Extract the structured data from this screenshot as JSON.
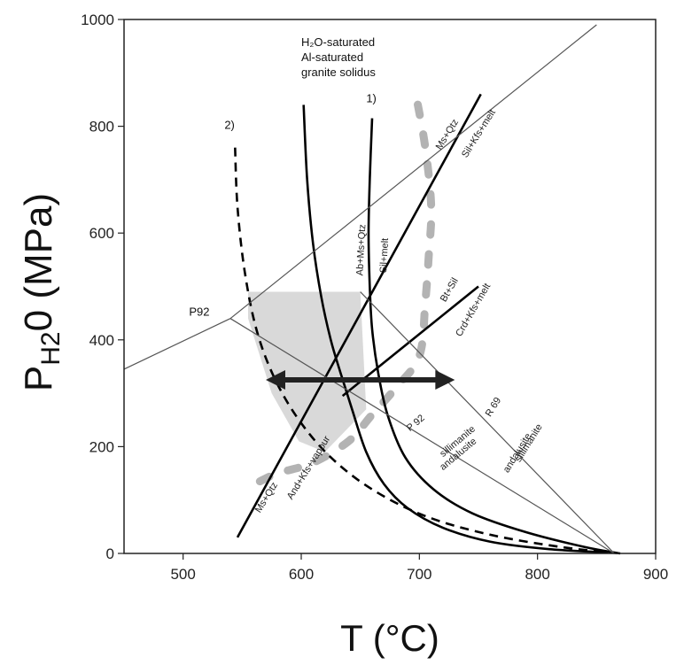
{
  "chart_data": {
    "type": "line",
    "xlabel": "T (°C)",
    "ylabel_parts": [
      "P",
      "H",
      "2",
      "0",
      " (MPa)"
    ],
    "xlim": [
      450,
      900
    ],
    "ylim": [
      0,
      1000
    ],
    "x_ticks": [
      "500",
      "600",
      "700",
      "800",
      "900"
    ],
    "y_ticks": [
      "0",
      "200",
      "400",
      "600",
      "800",
      "1000"
    ],
    "grid": false,
    "series": [
      {
        "id": "solidus",
        "style": "solid-thick",
        "points": [
          [
            602,
            840
          ],
          [
            605,
            700
          ],
          [
            610,
            580
          ],
          [
            617,
            480
          ],
          [
            625,
            400
          ],
          [
            633,
            340
          ],
          [
            643,
            270
          ],
          [
            655,
            190
          ],
          [
            670,
            130
          ],
          [
            690,
            85
          ],
          [
            720,
            48
          ],
          [
            760,
            22
          ],
          [
            810,
            8
          ],
          [
            860,
            2
          ]
        ]
      },
      {
        "id": "curve1",
        "style": "solid-thick",
        "points": [
          [
            660,
            815
          ],
          [
            658,
            700
          ],
          [
            657,
            600
          ],
          [
            658,
            500
          ],
          [
            660,
            420
          ],
          [
            665,
            340
          ],
          [
            673,
            260
          ],
          [
            688,
            180
          ],
          [
            712,
            120
          ],
          [
            745,
            75
          ],
          [
            790,
            40
          ],
          [
            840,
            12
          ],
          [
            870,
            0
          ]
        ]
      },
      {
        "id": "curve2",
        "style": "dashed-thick",
        "points": [
          [
            544,
            760
          ],
          [
            546,
            650
          ],
          [
            552,
            530
          ],
          [
            562,
            420
          ],
          [
            577,
            330
          ],
          [
            598,
            250
          ],
          [
            625,
            180
          ],
          [
            660,
            120
          ],
          [
            705,
            70
          ],
          [
            760,
            35
          ],
          [
            820,
            12
          ],
          [
            870,
            0
          ]
        ]
      },
      {
        "id": "ms-qtz-and",
        "style": "solid-thick",
        "points": [
          [
            546,
            30
          ],
          [
            752,
            860
          ]
        ]
      },
      {
        "id": "bt-sil",
        "style": "solid-thick",
        "points": [
          [
            635,
            295
          ],
          [
            750,
            500
          ]
        ]
      },
      {
        "id": "p92-upper",
        "style": "solid-thin",
        "points": [
          [
            540,
            440
          ],
          [
            850,
            990
          ]
        ]
      },
      {
        "id": "p92-left",
        "style": "solid-thin",
        "points": [
          [
            450,
            345
          ],
          [
            540,
            440
          ]
        ]
      },
      {
        "id": "p92-sill",
        "style": "solid-thin",
        "points": [
          [
            540,
            440
          ],
          [
            865,
            0
          ]
        ]
      },
      {
        "id": "r69",
        "style": "solid-thin",
        "points": [
          [
            650,
            490
          ],
          [
            865,
            0
          ]
        ]
      }
    ],
    "arrow": {
      "x": [
        570,
        730
      ],
      "y": 325
    },
    "shaded_region": [
      [
        555,
        490
      ],
      [
        650,
        490
      ],
      [
        655,
        270
      ],
      [
        620,
        190
      ],
      [
        598,
        210
      ],
      [
        575,
        300
      ],
      [
        555,
        440
      ]
    ],
    "gray_dashed_curve": [
      [
        565,
        135
      ],
      [
        580,
        150
      ],
      [
        610,
        170
      ],
      [
        640,
        210
      ],
      [
        660,
        260
      ],
      [
        680,
        310
      ],
      [
        700,
        370
      ],
      [
        705,
        470
      ],
      [
        708,
        560
      ],
      [
        710,
        650
      ],
      [
        705,
        760
      ],
      [
        697,
        860
      ]
    ],
    "annotations": [
      {
        "text": "H₂O-saturated",
        "x": 600,
        "y": 950
      },
      {
        "text": "Al-saturated",
        "x": 600,
        "y": 922
      },
      {
        "text": "granite solidus",
        "x": 600,
        "y": 894
      },
      {
        "text": "1)",
        "x": 655,
        "y": 845
      },
      {
        "text": "2)",
        "x": 535,
        "y": 795
      },
      {
        "text": "P92",
        "x": 505,
        "y": 445
      },
      {
        "text": "Ms+Qtz",
        "x": 718,
        "y": 755,
        "rotate": -58
      },
      {
        "text": "Sil+Kfs+melt",
        "x": 740,
        "y": 740,
        "rotate": -58
      },
      {
        "text": "Ab+Ms+Qtz",
        "x": 652,
        "y": 520,
        "rotate": -87
      },
      {
        "text": "Sil+melt",
        "x": 672,
        "y": 525,
        "rotate": -87
      },
      {
        "text": "Bt+Sil",
        "x": 722,
        "y": 470,
        "rotate": -60
      },
      {
        "text": "Crd+Kfs+melt",
        "x": 735,
        "y": 405,
        "rotate": -60
      },
      {
        "text": "R 69",
        "x": 760,
        "y": 255,
        "rotate": -58
      },
      {
        "text": "sillimanite",
        "x": 785,
        "y": 170,
        "rotate": -58
      },
      {
        "text": "andalusite",
        "x": 775,
        "y": 150,
        "rotate": -58
      },
      {
        "text": "P 92",
        "x": 692,
        "y": 228,
        "rotate": -40
      },
      {
        "text": "sillimanite",
        "x": 720,
        "y": 180,
        "rotate": -40
      },
      {
        "text": "andalusite",
        "x": 720,
        "y": 155,
        "rotate": -40
      },
      {
        "text": "Ms+Qtz",
        "x": 565,
        "y": 75,
        "rotate": -58
      },
      {
        "text": "And+Kfs+vapour",
        "x": 592,
        "y": 100,
        "rotate": -58
      }
    ]
  }
}
